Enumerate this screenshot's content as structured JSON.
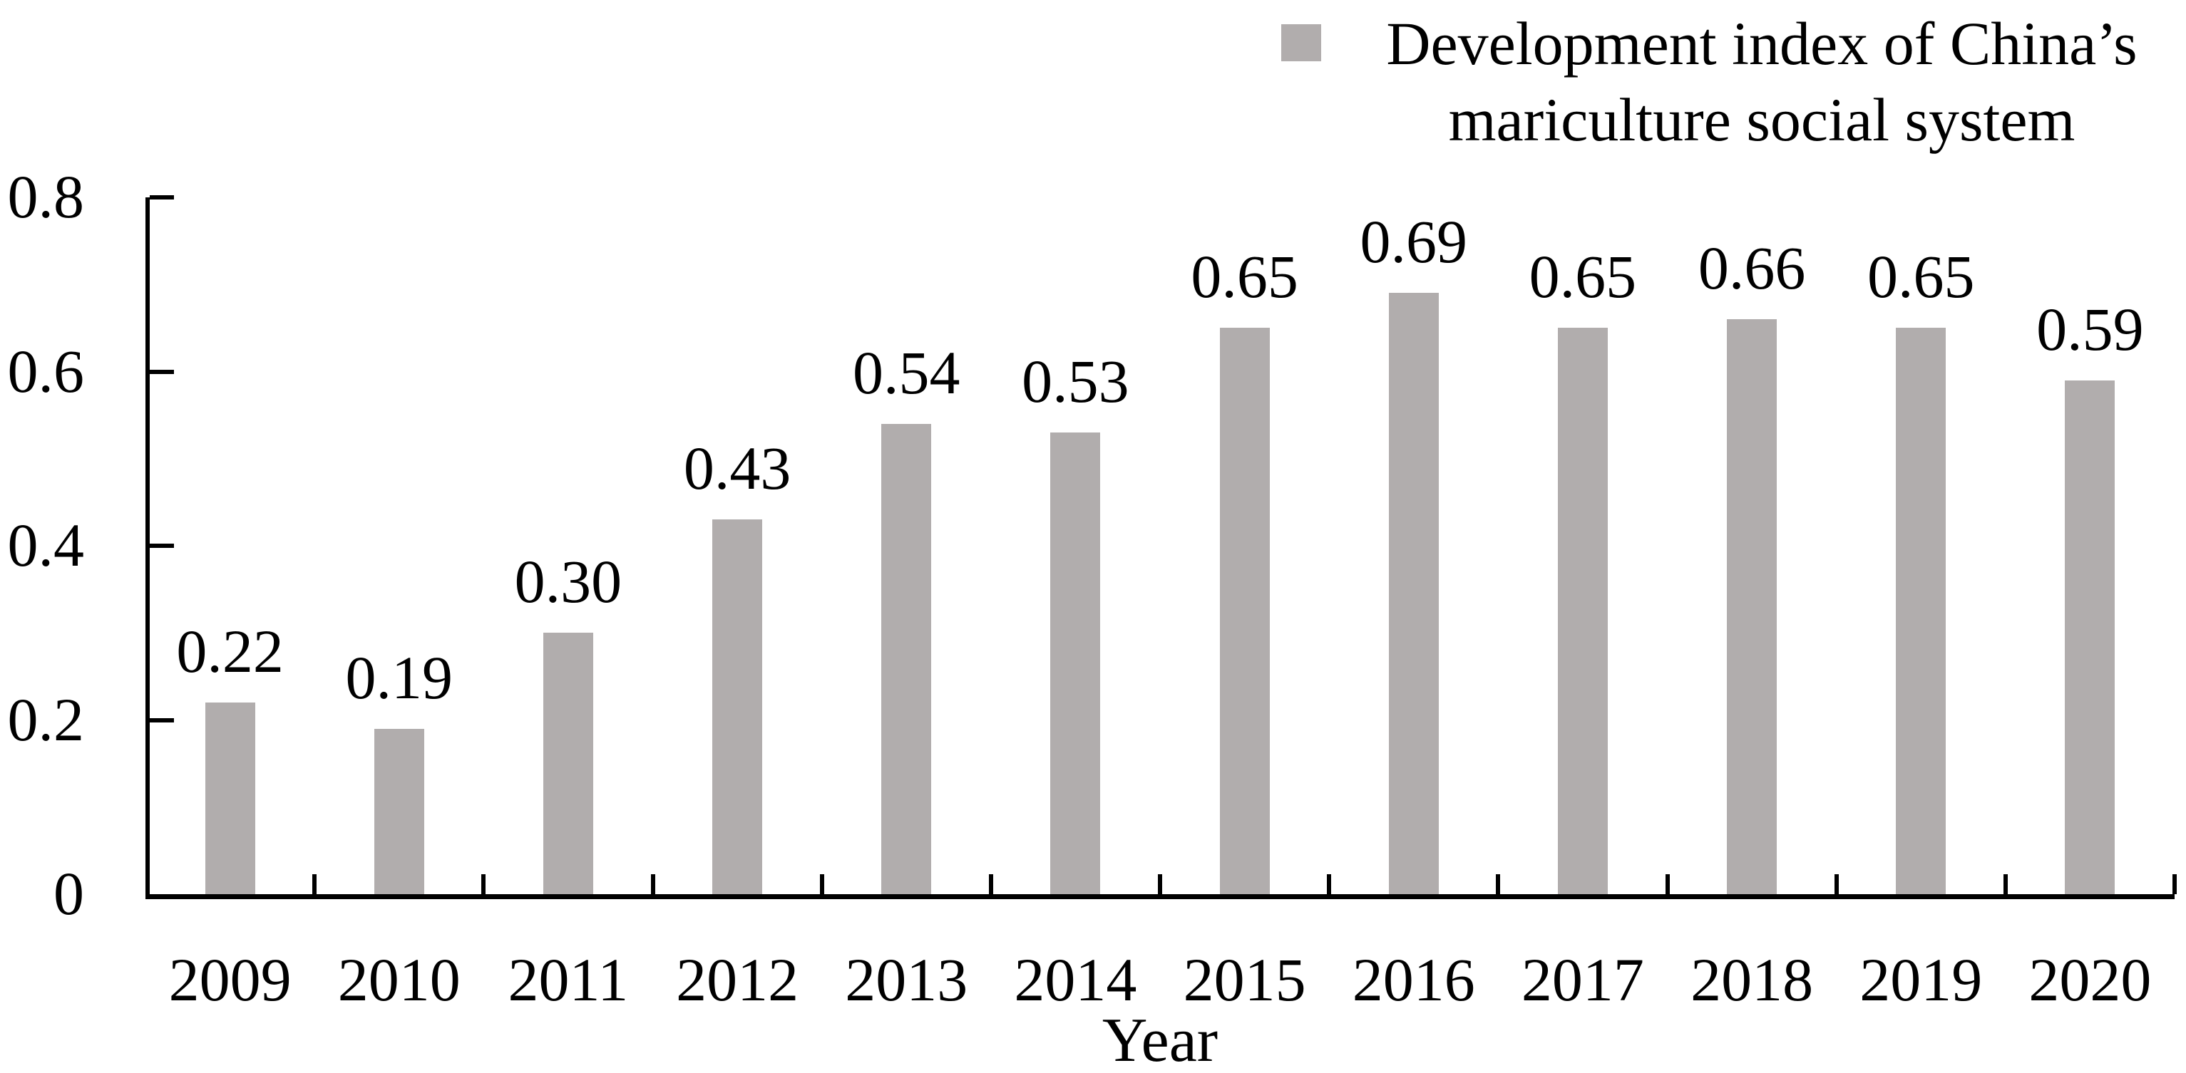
{
  "chart_data": {
    "type": "bar",
    "title": "",
    "categories": [
      "2009",
      "2010",
      "2011",
      "2012",
      "2013",
      "2014",
      "2015",
      "2016",
      "2017",
      "2018",
      "2019",
      "2020"
    ],
    "values": [
      0.22,
      0.19,
      0.3,
      0.43,
      0.54,
      0.53,
      0.65,
      0.69,
      0.65,
      0.66,
      0.65,
      0.59
    ],
    "value_labels": [
      "0.22",
      "0.19",
      "0.30",
      "0.43",
      "0.54",
      "0.53",
      "0.65",
      "0.69",
      "0.65",
      "0.66",
      "0.65",
      "0.59"
    ],
    "series": [
      {
        "name": "Development index of China's mariculture social system",
        "values": [
          0.22,
          0.19,
          0.3,
          0.43,
          0.54,
          0.53,
          0.65,
          0.69,
          0.65,
          0.66,
          0.65,
          0.59
        ]
      }
    ],
    "legend": {
      "label": "Development index of China’s mariculture social system",
      "position": "top-right",
      "marker_color": "#b1adad"
    },
    "xlabel": "Year",
    "ylabel": "",
    "ylim": [
      0,
      0.8
    ],
    "ytick_labels": [
      "0",
      "0.2",
      "0.4",
      "0.6",
      "0.8"
    ],
    "ytick_values": [
      0,
      0.2,
      0.4,
      0.6,
      0.8
    ],
    "bar_color": "#b1adad",
    "axis_color": "#000000",
    "text_color": "#000000",
    "grid": false,
    "data_labels_shown": true
  }
}
